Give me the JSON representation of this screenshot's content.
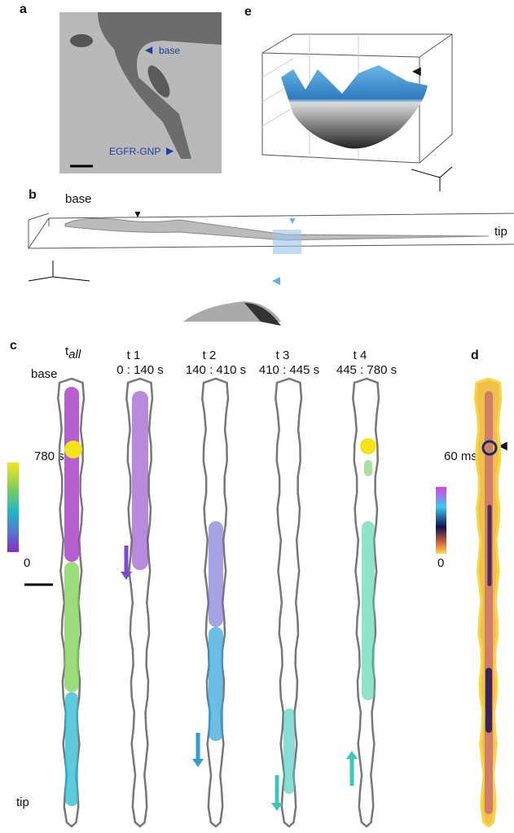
{
  "panels": {
    "a": {
      "label": "a",
      "annotations": [
        "base",
        "EGFR-GNP"
      ]
    },
    "e": {
      "label": "e"
    },
    "b": {
      "label": "b",
      "start": "base",
      "end": "tip"
    },
    "c": {
      "label": "c",
      "base": "base",
      "tip": "tip",
      "columns": [
        {
          "name": "t",
          "subscript": "all"
        },
        {
          "name": "t 1",
          "range": "0 : 140 s"
        },
        {
          "name": "t 2",
          "range": "140 : 410 s"
        },
        {
          "name": "t 3",
          "range": "410 : 445 s"
        },
        {
          "name": "t 4",
          "range": "445 : 780 s"
        }
      ],
      "colorbar": {
        "max": "780 s",
        "min": "0"
      }
    },
    "d": {
      "label": "d",
      "colorbar": {
        "max": "60 ms",
        "min": "0"
      }
    }
  }
}
